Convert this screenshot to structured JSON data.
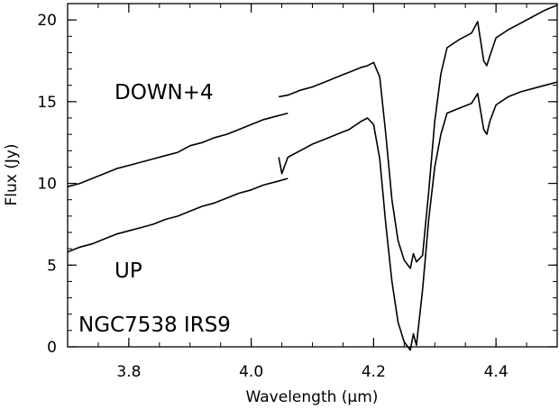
{
  "chart_data": {
    "type": "line",
    "title": "",
    "xlabel": "Wavelength (μm)",
    "ylabel": "Flux (Jy)",
    "xlim": [
      3.7,
      4.5
    ],
    "ylim": [
      0,
      21
    ],
    "xticks": [
      3.8,
      4.0,
      4.2,
      4.4
    ],
    "xtick_labels": [
      "3.8",
      "4.0",
      "4.2",
      "4.4"
    ],
    "yticks": [
      0,
      5,
      10,
      15,
      20
    ],
    "ytick_labels": [
      "0",
      "5",
      "10",
      "15",
      "20"
    ],
    "grid": false,
    "legend": "none",
    "annotations": [
      "DOWN+4",
      "UP",
      "NGC7538 IRS9"
    ],
    "series": [
      {
        "segments": [
          [
            [
              3.7,
              9.8
            ],
            [
              3.72,
              10.0
            ],
            [
              3.74,
              10.3
            ],
            [
              3.76,
              10.6
            ],
            [
              3.78,
              10.9
            ],
            [
              3.8,
              11.1
            ],
            [
              3.82,
              11.3
            ],
            [
              3.84,
              11.5
            ],
            [
              3.86,
              11.7
            ],
            [
              3.88,
              11.9
            ],
            [
              3.9,
              12.3
            ],
            [
              3.92,
              12.5
            ],
            [
              3.94,
              12.8
            ],
            [
              3.96,
              13.0
            ],
            [
              3.98,
              13.3
            ],
            [
              4.0,
              13.6
            ],
            [
              4.02,
              13.9
            ],
            [
              4.04,
              14.1
            ],
            [
              4.06,
              14.3
            ]
          ],
          [
            [
              4.045,
              15.3
            ],
            [
              4.06,
              15.4
            ],
            [
              4.08,
              15.7
            ],
            [
              4.1,
              15.9
            ],
            [
              4.12,
              16.2
            ],
            [
              4.14,
              16.5
            ],
            [
              4.16,
              16.8
            ],
            [
              4.18,
              17.1
            ],
            [
              4.19,
              17.2
            ],
            [
              4.2,
              17.4
            ],
            [
              4.21,
              16.5
            ],
            [
              4.22,
              13.0
            ],
            [
              4.23,
              9.0
            ],
            [
              4.24,
              6.5
            ],
            [
              4.25,
              5.3
            ],
            [
              4.26,
              4.8
            ],
            [
              4.265,
              5.7
            ],
            [
              4.27,
              5.2
            ],
            [
              4.28,
              5.6
            ],
            [
              4.29,
              9.5
            ],
            [
              4.3,
              13.8
            ],
            [
              4.31,
              16.7
            ],
            [
              4.32,
              18.3
            ],
            [
              4.34,
              18.8
            ],
            [
              4.36,
              19.2
            ],
            [
              4.37,
              19.9
            ],
            [
              4.38,
              17.5
            ],
            [
              4.385,
              17.2
            ],
            [
              4.39,
              17.8
            ],
            [
              4.4,
              18.9
            ],
            [
              4.42,
              19.4
            ],
            [
              4.44,
              19.8
            ],
            [
              4.46,
              20.2
            ],
            [
              4.48,
              20.6
            ],
            [
              4.5,
              20.9
            ]
          ]
        ]
      },
      {
        "segments": [
          [
            [
              3.7,
              5.8
            ],
            [
              3.72,
              6.1
            ],
            [
              3.74,
              6.3
            ],
            [
              3.76,
              6.6
            ],
            [
              3.78,
              6.9
            ],
            [
              3.8,
              7.1
            ],
            [
              3.82,
              7.3
            ],
            [
              3.84,
              7.5
            ],
            [
              3.86,
              7.8
            ],
            [
              3.88,
              8.0
            ],
            [
              3.9,
              8.3
            ],
            [
              3.92,
              8.6
            ],
            [
              3.94,
              8.8
            ],
            [
              3.96,
              9.1
            ],
            [
              3.98,
              9.4
            ],
            [
              4.0,
              9.6
            ],
            [
              4.02,
              9.9
            ],
            [
              4.04,
              10.1
            ],
            [
              4.06,
              10.3
            ]
          ],
          [
            [
              4.045,
              11.6
            ],
            [
              4.05,
              10.6
            ],
            [
              4.06,
              11.6
            ],
            [
              4.08,
              12.0
            ],
            [
              4.1,
              12.4
            ],
            [
              4.12,
              12.7
            ],
            [
              4.14,
              13.0
            ],
            [
              4.16,
              13.3
            ],
            [
              4.18,
              13.8
            ],
            [
              4.19,
              14.0
            ],
            [
              4.2,
              13.6
            ],
            [
              4.21,
              11.5
            ],
            [
              4.22,
              7.5
            ],
            [
              4.23,
              4.0
            ],
            [
              4.24,
              1.5
            ],
            [
              4.25,
              0.3
            ],
            [
              4.26,
              -0.2
            ],
            [
              4.265,
              0.8
            ],
            [
              4.27,
              0.1
            ],
            [
              4.28,
              3.5
            ],
            [
              4.29,
              7.8
            ],
            [
              4.3,
              11.0
            ],
            [
              4.31,
              13.0
            ],
            [
              4.32,
              14.3
            ],
            [
              4.34,
              14.6
            ],
            [
              4.36,
              14.9
            ],
            [
              4.37,
              15.5
            ],
            [
              4.38,
              13.3
            ],
            [
              4.385,
              13.0
            ],
            [
              4.39,
              13.8
            ],
            [
              4.4,
              14.8
            ],
            [
              4.42,
              15.3
            ],
            [
              4.44,
              15.6
            ],
            [
              4.46,
              15.8
            ],
            [
              4.48,
              16.0
            ],
            [
              4.5,
              16.2
            ]
          ]
        ]
      }
    ]
  }
}
